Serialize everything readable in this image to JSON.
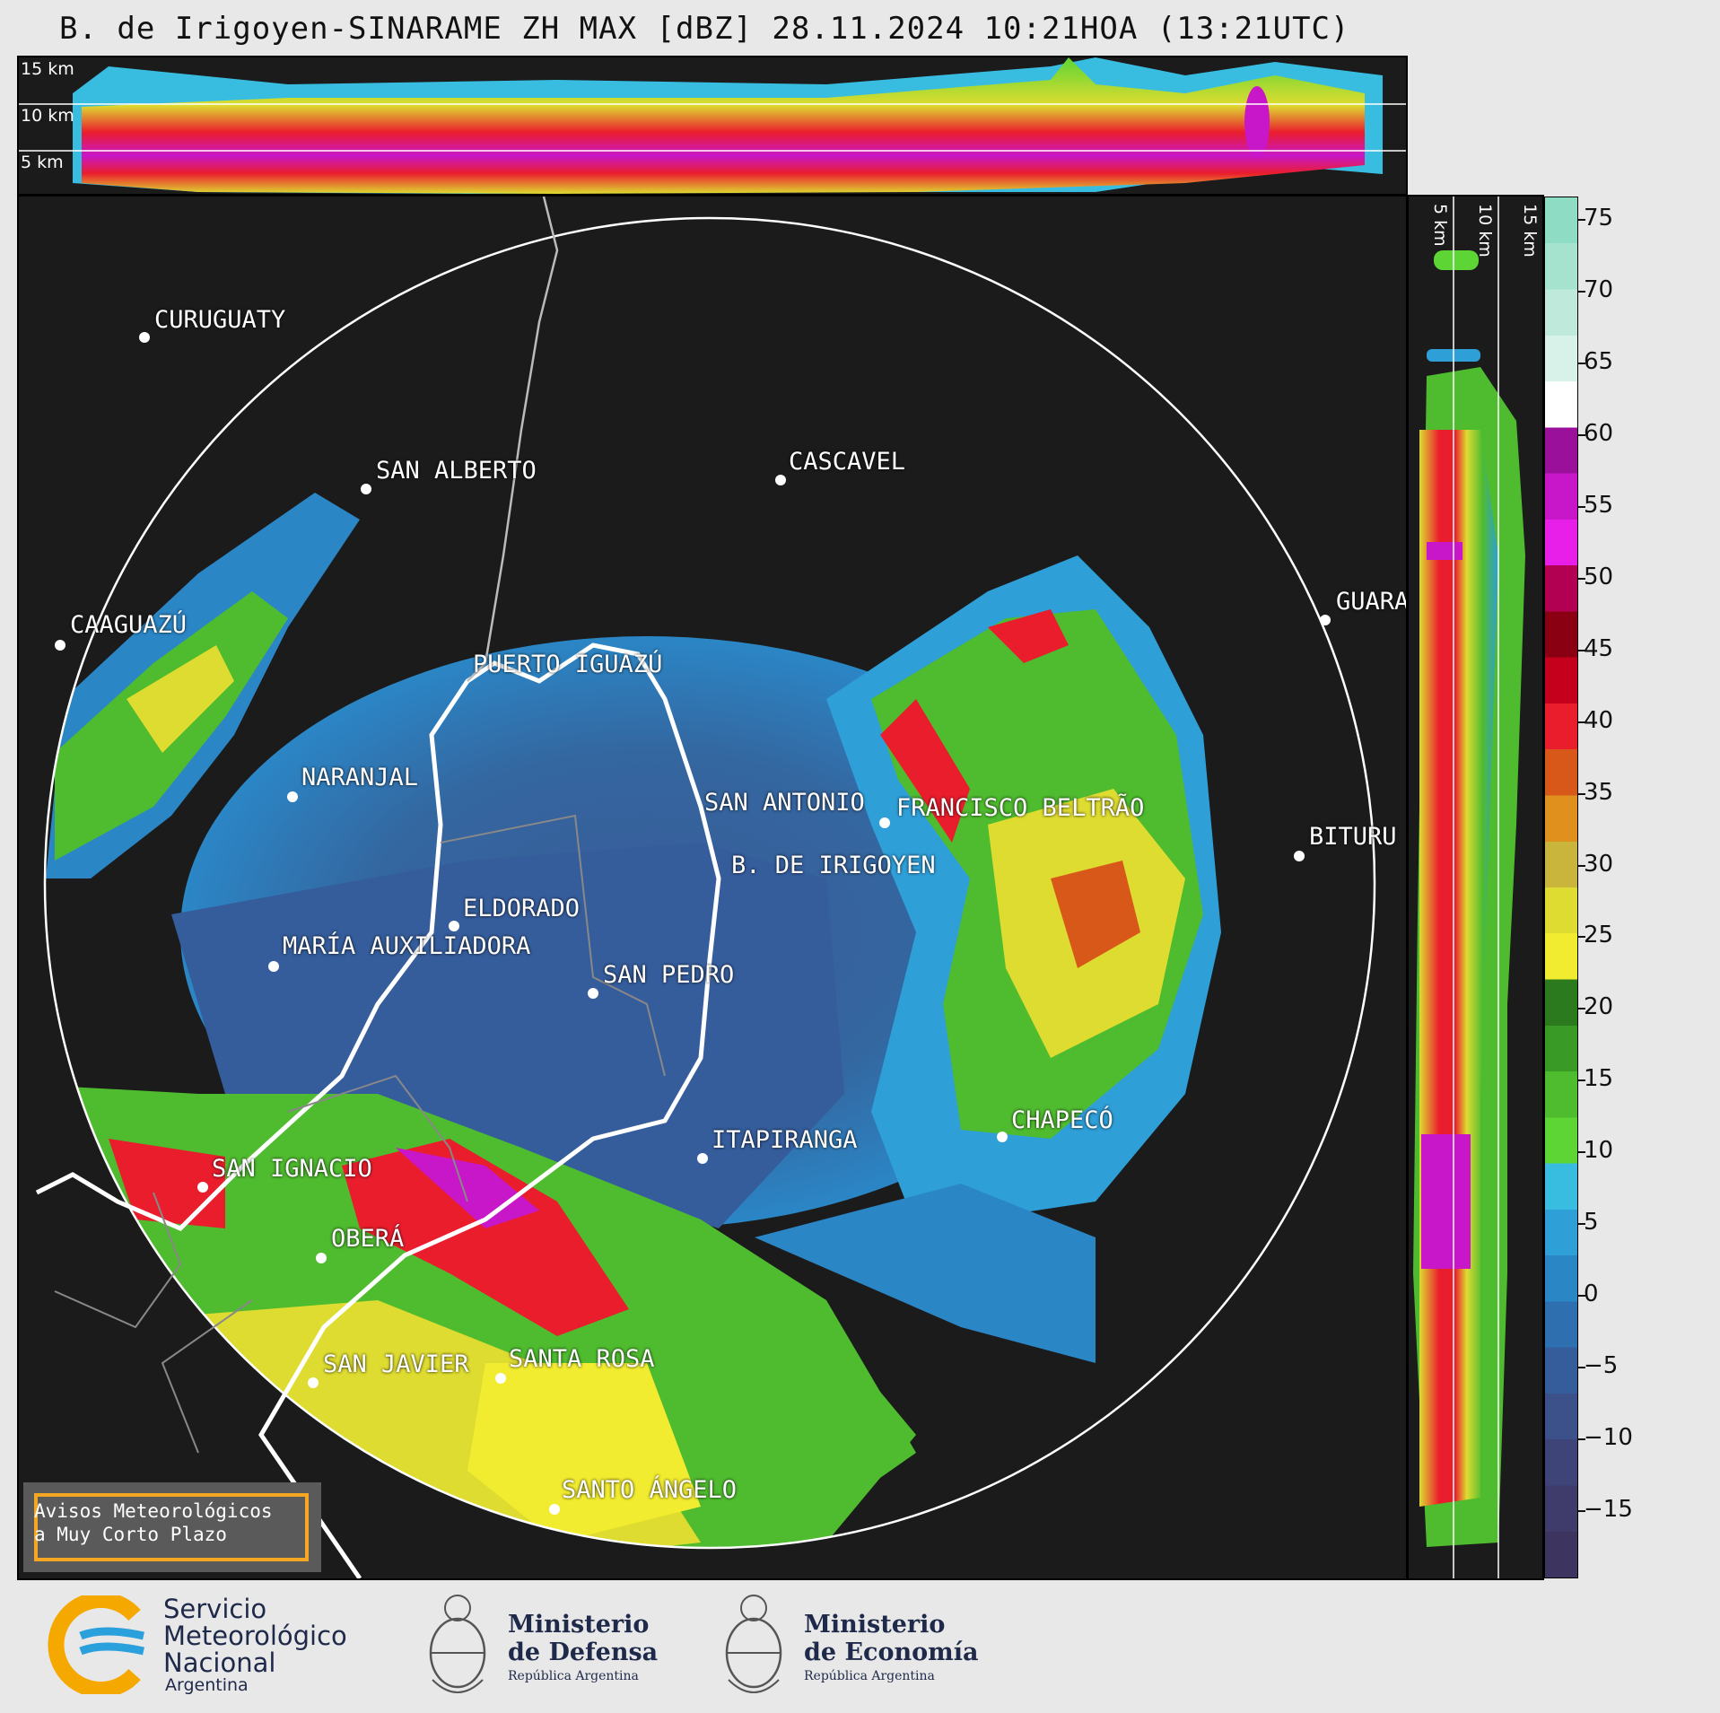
{
  "title": "B. de Irigoyen-SINARAME ZH MAX [dBZ] 28.11.2024 10:21HOA (13:21UTC)",
  "top_profile": {
    "labels": [
      "15 km",
      "10 km",
      "5 km"
    ]
  },
  "side_profile": {
    "labels": [
      "5 km",
      "10 km",
      "15 km"
    ]
  },
  "cities": [
    {
      "name": "CURUGUATY"
    },
    {
      "name": "SAN ALBERTO"
    },
    {
      "name": "CASCAVEL"
    },
    {
      "name": "CAAGUAZÚ"
    },
    {
      "name": "GUARA"
    },
    {
      "name": "PUERTO IGUAZÚ"
    },
    {
      "name": "NARANJAL"
    },
    {
      "name": "SAN ANTONIO"
    },
    {
      "name": "FRANCISCO BELTRÃO"
    },
    {
      "name": "B. DE IRIGOYEN"
    },
    {
      "name": "BITURU"
    },
    {
      "name": "ELDORADO"
    },
    {
      "name": "MARÍA AUXILIADORA"
    },
    {
      "name": "SAN PEDRO"
    },
    {
      "name": "CHAPECÓ"
    },
    {
      "name": "ITAPIRANGA"
    },
    {
      "name": "SAN IGNACIO"
    },
    {
      "name": "OBERÁ"
    },
    {
      "name": "SAN JAVIER"
    },
    {
      "name": "SANTA ROSA"
    },
    {
      "name": "SANTO ÁNGELO"
    }
  ],
  "colorbar": {
    "unit": "dBZ",
    "ticks": [
      "75",
      "70",
      "65",
      "60",
      "55",
      "50",
      "45",
      "40",
      "35",
      "30",
      "25",
      "20",
      "15",
      "10",
      "5",
      "0",
      "−5",
      "−10",
      "−15"
    ],
    "colors": [
      "#8fdcc4",
      "#a6e3cf",
      "#bfeadb",
      "#d9f2e9",
      "#ffffff",
      "#9b109b",
      "#c817c8",
      "#e81fe8",
      "#b20052",
      "#8a0012",
      "#c4001c",
      "#ea1d2d",
      "#d8581a",
      "#e0901c",
      "#c9b43c",
      "#dedc30",
      "#f2ec30",
      "#2b7a1e",
      "#3a9a26",
      "#4fbb2f",
      "#5dd534",
      "#38bde0",
      "#2f9fd8",
      "#2b86c6",
      "#2e6fb0",
      "#355d9c",
      "#3c5089",
      "#3f4478",
      "#3f3b6a",
      "#3d3560"
    ]
  },
  "warning": {
    "line1": "Avisos Meteorológicos",
    "line2": "a Muy Corto Plazo"
  },
  "logos": {
    "smn": {
      "line1": "Servicio",
      "line2": "Meteorológico",
      "line3": "Nacional",
      "line4": "Argentina"
    },
    "defensa": {
      "line1": "Ministerio",
      "line2": "de Defensa",
      "line3": "República Argentina"
    },
    "economia": {
      "line1": "Ministerio",
      "line2": "de Economía",
      "line3": "República Argentina"
    }
  }
}
